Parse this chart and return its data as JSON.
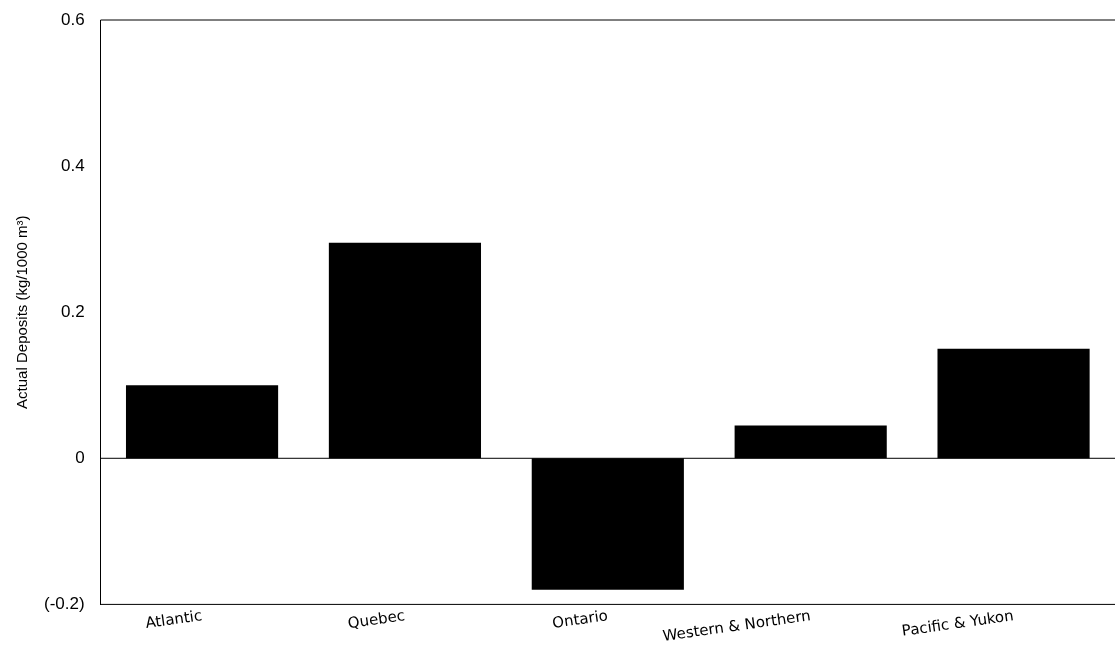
{
  "chart_data": {
    "type": "bar",
    "ylabel": "Actual Deposits (kg/1000 m³)",
    "categories": [
      "Atlantic",
      "Quebec",
      "Ontario",
      "Western & Northern",
      "Pacific & Yukon"
    ],
    "series": [
      {
        "color": "#000000",
        "values": [
          0.1,
          0.295,
          -0.18,
          0.045,
          0.15
        ]
      }
    ],
    "ylim": [
      -0.2,
      0.6
    ],
    "yticks": [
      {
        "value": -0.2,
        "label": "(-0.2)"
      },
      0,
      0.2,
      0.4,
      0.6
    ],
    "ref_lines": [
      {
        "axis": "y",
        "value": 0,
        "color": "#000000"
      }
    ],
    "grid": false,
    "legend": false
  }
}
